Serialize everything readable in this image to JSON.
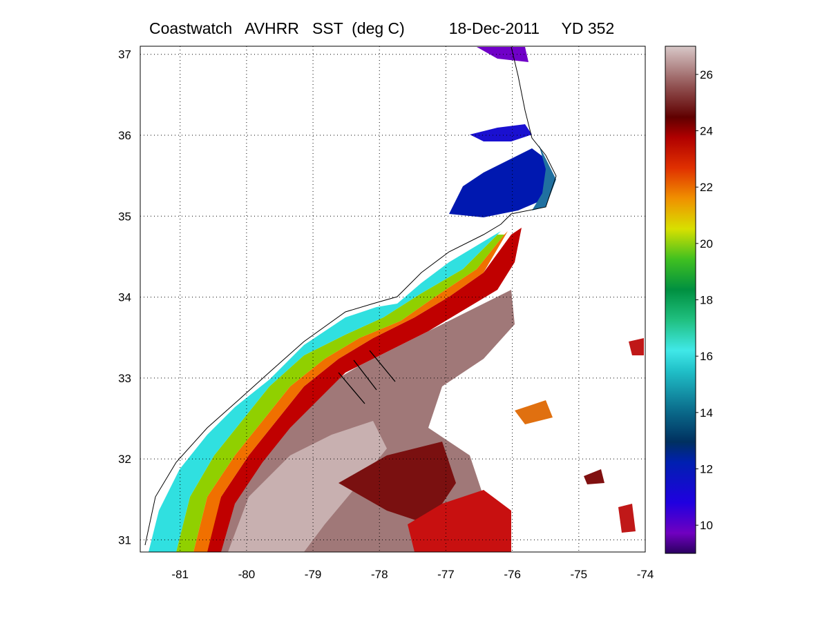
{
  "title": "Coastwatch   AVHRR   SST  (deg C)          18-Dec-2011     YD 352",
  "map": {
    "lon_ticks": [
      "-81",
      "-80",
      "-79",
      "-78",
      "-77",
      "-76",
      "-75",
      "-74"
    ],
    "lat_ticks": [
      "37",
      "36",
      "35",
      "34",
      "33",
      "32",
      "31"
    ],
    "lon_range": [
      -81.6,
      -74.0
    ],
    "lat_range": [
      30.85,
      37.1
    ],
    "grid": "dotted"
  },
  "colorbar": {
    "tick_labels": [
      "26",
      "24",
      "22",
      "20",
      "18",
      "16",
      "14",
      "12",
      "10"
    ],
    "range": [
      9,
      27
    ],
    "colors": [
      "#6a00a8",
      "#1a00e0",
      "#0030c0",
      "#0a6a8a",
      "#10c0c0",
      "#30e0e0",
      "#00a050",
      "#30c020",
      "#d8e000",
      "#f08a00",
      "#e02000",
      "#c00000",
      "#6a0000",
      "#8a4040",
      "#b09090",
      "#d0c0c0"
    ]
  }
}
